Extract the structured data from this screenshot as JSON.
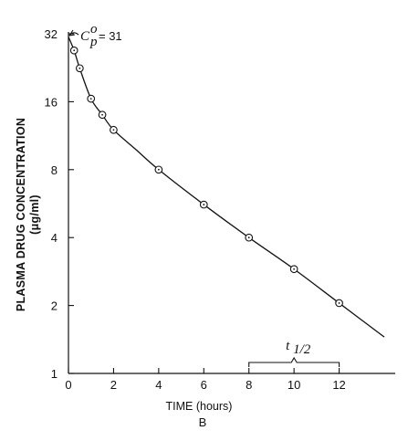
{
  "chart_data": {
    "type": "line",
    "xlabel": "TIME (hours)",
    "ylabel_line1": "PLASMA DRUG CONCENTRATION",
    "ylabel_line2": "(μg/ml)",
    "y_scale": "log2",
    "xlim": [
      0,
      14
    ],
    "ylim": [
      1,
      32
    ],
    "x_ticks": [
      0,
      2,
      4,
      6,
      8,
      10,
      12
    ],
    "x_tick_labels": [
      "0",
      "2",
      "4",
      "6",
      "8",
      "10",
      "12"
    ],
    "y_ticks": [
      1,
      2,
      4,
      8,
      16,
      32
    ],
    "y_tick_labels": [
      "1",
      "2",
      "4",
      "8",
      "16",
      "32"
    ],
    "series": [
      {
        "x": [
          0.25,
          0.5,
          1,
          1.5,
          2,
          4,
          6,
          8,
          10,
          12
        ],
        "y": [
          27,
          22.5,
          16.5,
          14,
          12,
          8,
          5.6,
          4,
          2.9,
          2.05
        ]
      }
    ],
    "curve": {
      "x": [
        0,
        0.25,
        0.5,
        1,
        1.5,
        2,
        3,
        4,
        6,
        8,
        10,
        12,
        14
      ],
      "y": [
        31,
        27,
        22.5,
        16.5,
        14,
        12,
        9.8,
        8,
        5.6,
        4,
        2.9,
        2.05,
        1.45
      ]
    },
    "annotations": {
      "c0_symbol": "C",
      "c0_sup": "o",
      "c0_sub": "p",
      "c0_value": "= 31",
      "half_life_symbol": "t",
      "half_life_sub": "1/2",
      "half_life_range": [
        8,
        12
      ],
      "panel_label": "B"
    }
  }
}
